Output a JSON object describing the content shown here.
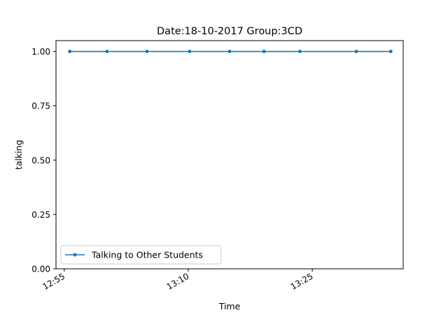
{
  "chart_data": {
    "type": "line",
    "title": "Date:18-10-2017  Group:3CD",
    "xlabel": "Time",
    "ylabel": "talking",
    "ylim": [
      0,
      1.05
    ],
    "yticks": [
      "0.00",
      "0.25",
      "0.50",
      "0.75",
      "1.00"
    ],
    "xlim": [
      "12:54",
      "13:36"
    ],
    "xticks": [
      "12:55",
      "13:10",
      "13:25"
    ],
    "grid": false,
    "legend_position": "lower-left",
    "series": [
      {
        "name": "Talking to Other Students",
        "color": "#1f77b4",
        "marker": "circle",
        "x": [
          "12:55:40",
          "13:00:10",
          "13:05:00",
          "13:10:10",
          "13:15:00",
          "13:19:10",
          "13:23:30",
          "13:30:20",
          "13:34:30"
        ],
        "y": [
          1,
          1,
          1,
          1,
          1,
          1,
          1,
          1,
          1
        ]
      }
    ]
  }
}
